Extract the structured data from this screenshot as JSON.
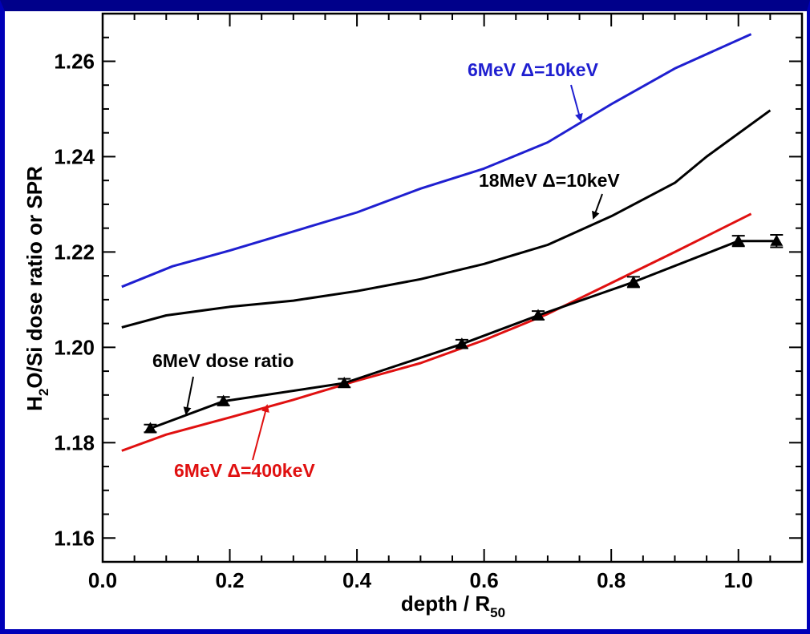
{
  "chart_data": {
    "type": "line",
    "title": "",
    "xlabel": {
      "main": "depth / R",
      "sub": "50"
    },
    "ylabel": {
      "pre": "H",
      "sub": "2",
      "post": "O/Si dose ratio or SPR"
    },
    "xlim": [
      0.0,
      1.1
    ],
    "ylim": [
      1.155,
      1.27
    ],
    "x_ticks": [
      "0.0",
      "0.2",
      "0.4",
      "0.6",
      "0.8",
      "1.0"
    ],
    "x_tick_values": [
      0.0,
      0.2,
      0.4,
      0.6,
      0.8,
      1.0
    ],
    "y_ticks": [
      "1.16",
      "1.18",
      "1.20",
      "1.22",
      "1.24",
      "1.26"
    ],
    "y_tick_values": [
      1.16,
      1.18,
      1.2,
      1.22,
      1.24,
      1.26
    ],
    "grid": false,
    "series": [
      {
        "name": "6MeV Δ=10keV",
        "color": "#1f1fd0",
        "x": [
          0.03,
          0.11,
          0.2,
          0.3,
          0.4,
          0.5,
          0.6,
          0.7,
          0.8,
          0.9,
          1.02
        ],
        "y": [
          1.2127,
          1.217,
          1.2203,
          1.2243,
          1.2283,
          1.2333,
          1.2375,
          1.243,
          1.251,
          1.2585,
          1.2657
        ]
      },
      {
        "name": "18MeV Δ=10keV",
        "color": "#000000",
        "x": [
          0.03,
          0.1,
          0.2,
          0.3,
          0.4,
          0.5,
          0.6,
          0.7,
          0.8,
          0.9,
          0.95,
          1.05
        ],
        "y": [
          1.2042,
          1.2067,
          1.2085,
          1.2098,
          1.2118,
          1.2143,
          1.2175,
          1.2215,
          1.2275,
          1.2345,
          1.24,
          1.2497
        ]
      },
      {
        "name": "6MeV Δ=400keV",
        "color": "#e01010",
        "x": [
          0.03,
          0.1,
          0.2,
          0.3,
          0.4,
          0.5,
          0.6,
          0.7,
          0.8,
          0.9,
          1.02
        ],
        "y": [
          1.1783,
          1.1817,
          1.1853,
          1.189,
          1.193,
          1.1967,
          1.2015,
          1.207,
          1.2135,
          1.22,
          1.228
        ]
      },
      {
        "name": "6MeV dose ratio",
        "color": "#000000",
        "markers": true,
        "x": [
          0.075,
          0.19,
          0.38,
          0.565,
          0.685,
          0.835,
          1.0,
          1.06
        ],
        "y": [
          1.183,
          1.1887,
          1.1925,
          1.2007,
          1.2067,
          1.2137,
          1.2223,
          1.2223
        ],
        "err": [
          0.0008,
          0.0009,
          0.0009,
          0.0009,
          0.0009,
          0.0011,
          0.0011,
          0.0013
        ]
      }
    ],
    "annotations": [
      {
        "text": "6MeV Δ=10keV",
        "color": "#1f1fd0"
      },
      {
        "text": "18MeV Δ=10keV",
        "color": "#000000"
      },
      {
        "text": "6MeV dose ratio",
        "color": "#000000"
      },
      {
        "text": "6MeV Δ=400keV",
        "color": "#e01010"
      }
    ]
  }
}
